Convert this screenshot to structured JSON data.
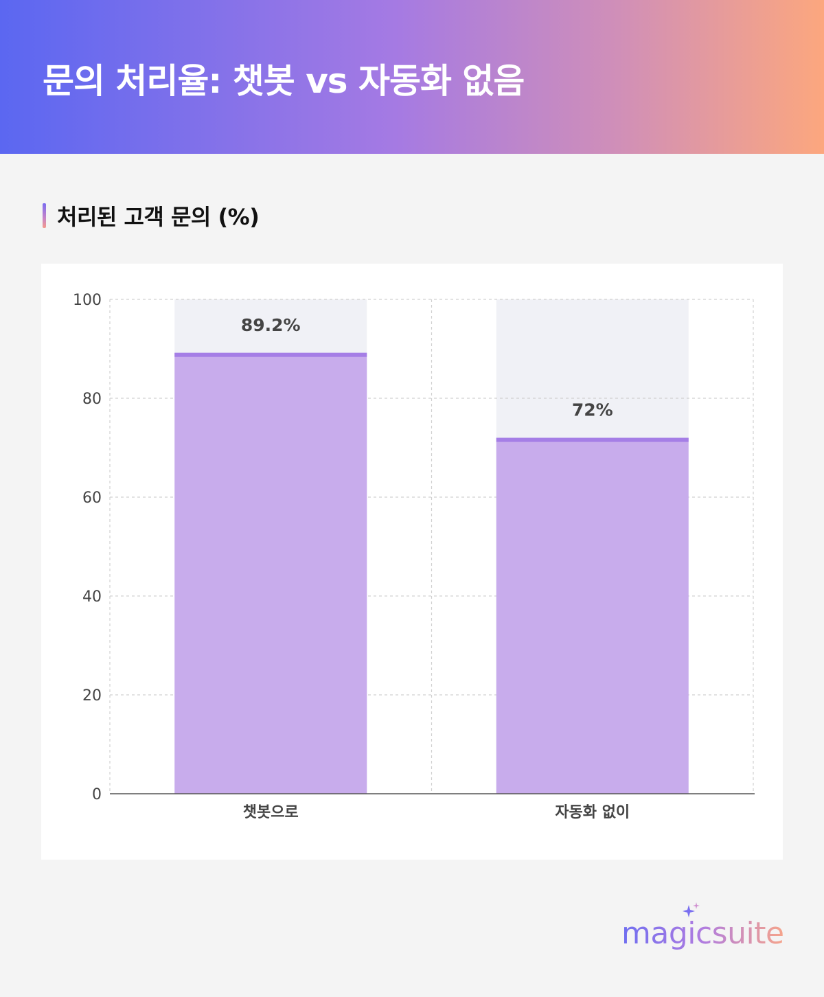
{
  "header": {
    "title": "문의 처리율: 챗봇 vs 자동화 없음"
  },
  "section": {
    "title": "처리된 고객 문의 (%)"
  },
  "chart_data": {
    "type": "bar",
    "categories": [
      "챗봇으로",
      "자동화 없이"
    ],
    "values": [
      89.2,
      72
    ],
    "value_labels": [
      "89.2%",
      "72%"
    ],
    "ylim": [
      0,
      100
    ],
    "yticks": [
      0,
      20,
      40,
      60,
      80,
      100
    ],
    "grid": true,
    "colors": {
      "bar": "#c8acec",
      "bar_top": "#a57ee6",
      "bar_background": "#f0f1f6",
      "grid": "#d0d0d0"
    }
  },
  "brand": {
    "logo_text": "magicsuite",
    "logo_icon": "sparkle-icon"
  }
}
